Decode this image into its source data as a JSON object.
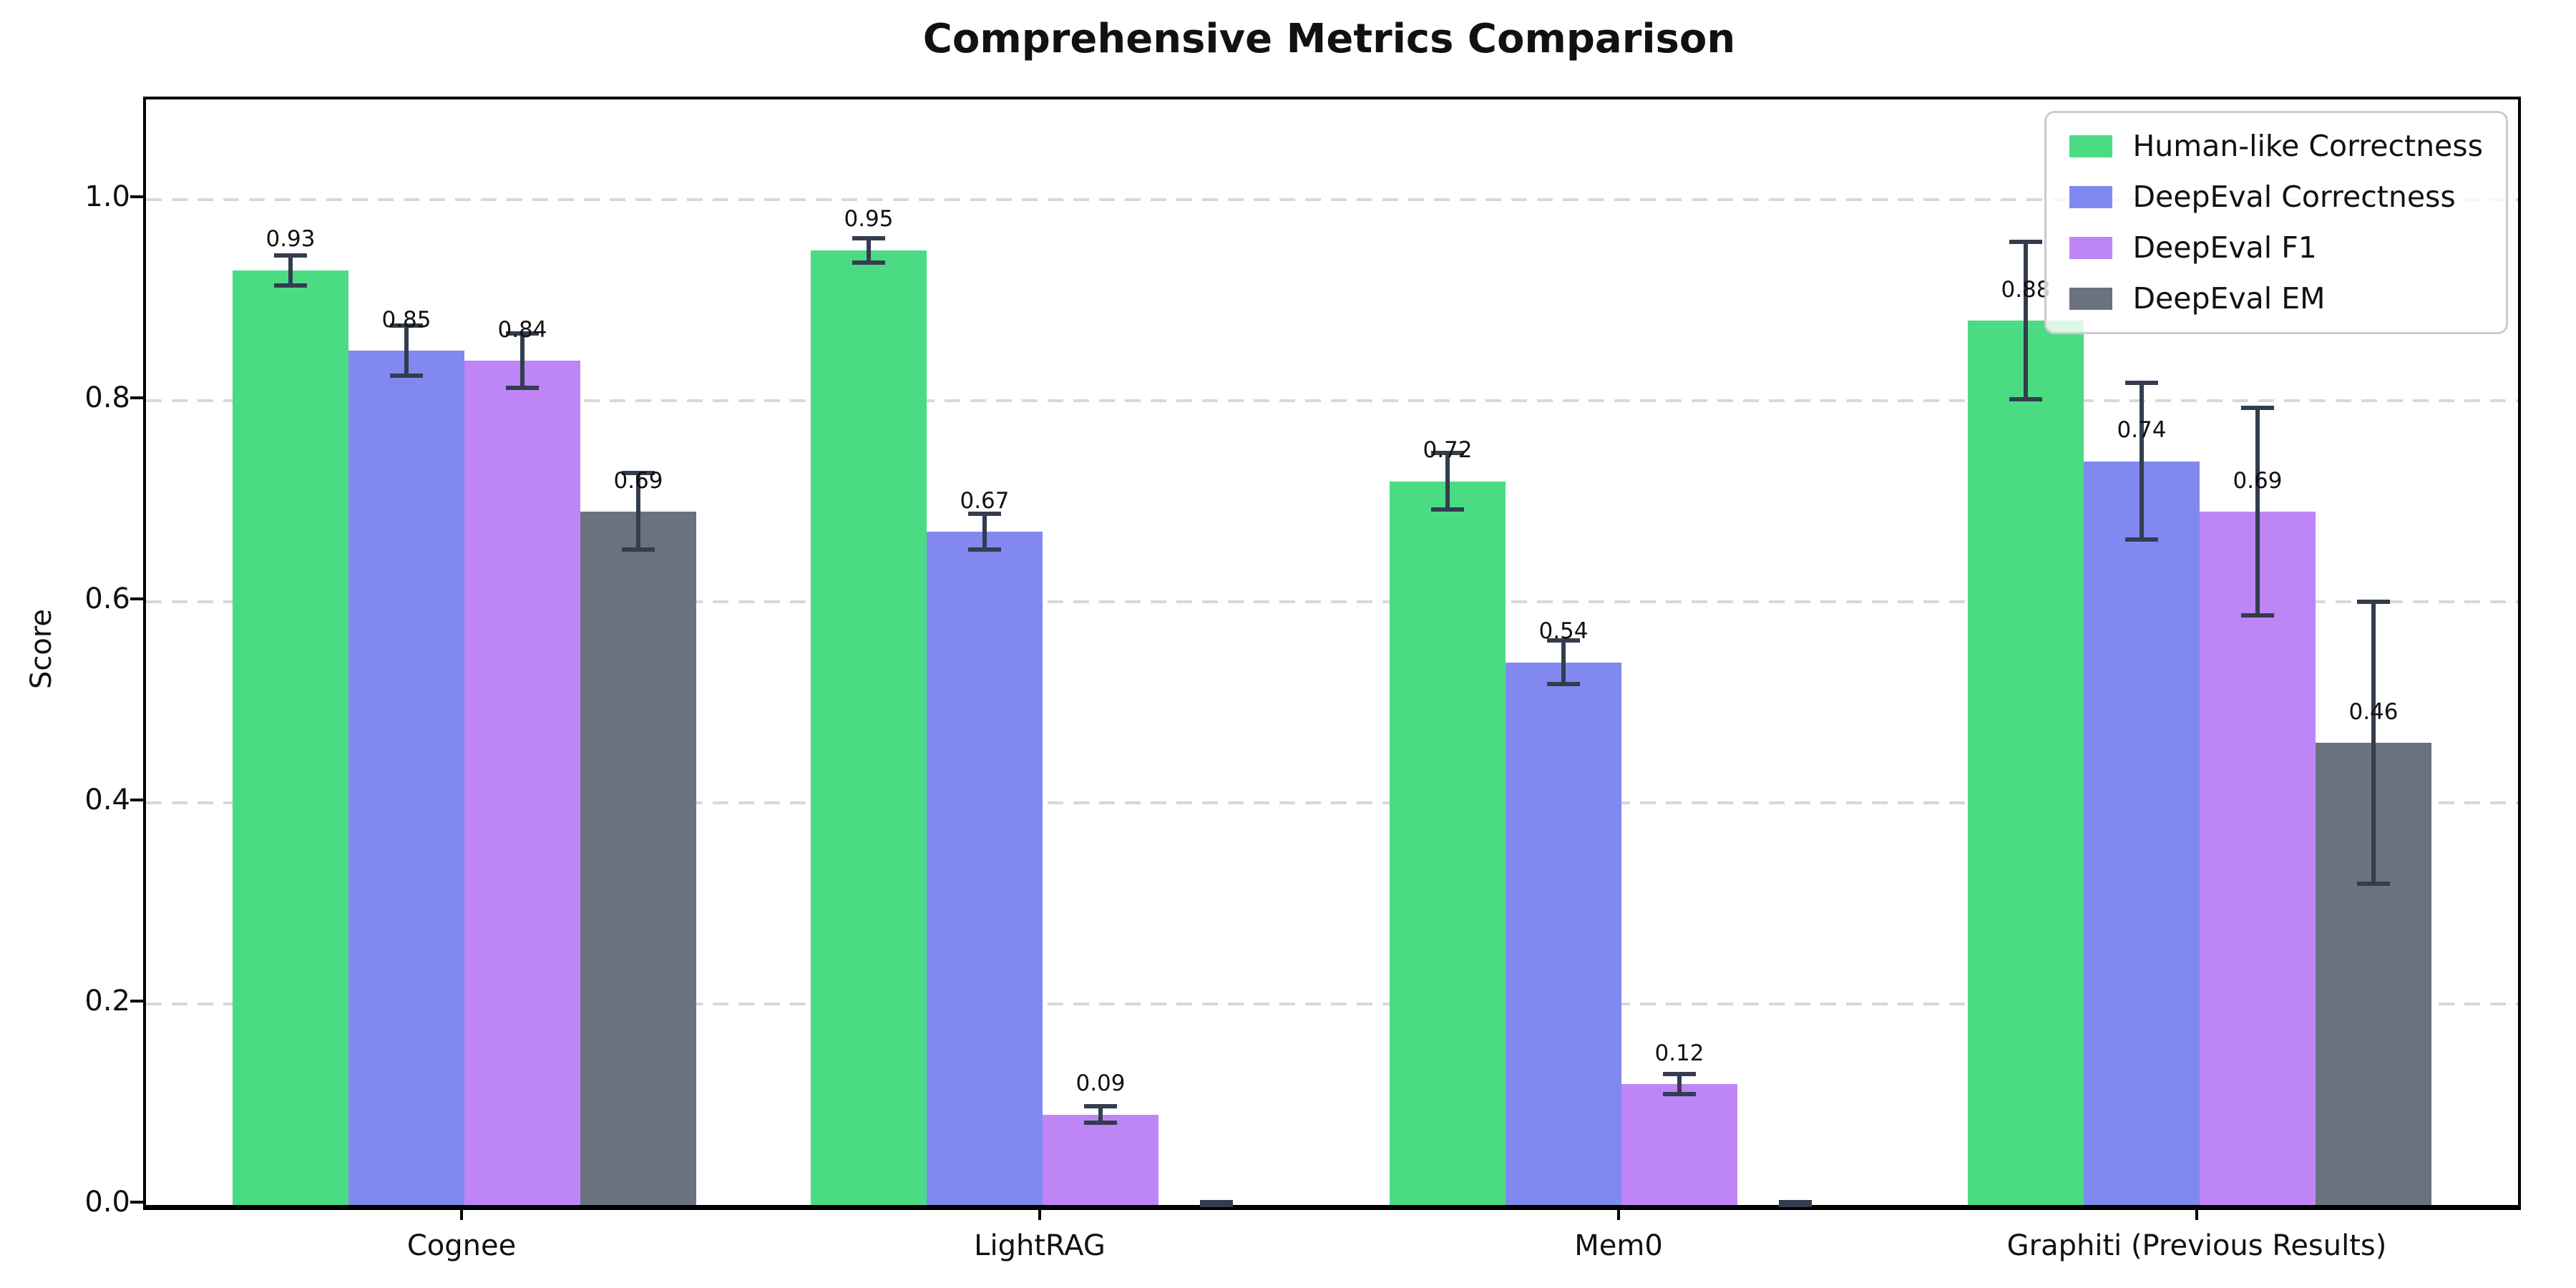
{
  "chart_data": {
    "type": "bar",
    "title": "Comprehensive Metrics Comparison",
    "ylabel": "Score",
    "categories": [
      "Cognee",
      "LightRAG",
      "Mem0",
      "Graphiti (Previous Results)"
    ],
    "series": [
      {
        "name": "Human-like Correctness",
        "color": "#4bdc83",
        "values": [
          0.93,
          0.95,
          0.72,
          0.88
        ],
        "errors": [
          0.015,
          0.012,
          0.028,
          0.078
        ],
        "labels": [
          "0.93",
          "0.95",
          "0.72",
          "0.88"
        ]
      },
      {
        "name": "DeepEval Correctness",
        "color": "#8189f0",
        "values": [
          0.85,
          0.67,
          0.54,
          0.74
        ],
        "errors": [
          0.025,
          0.018,
          0.022,
          0.078
        ],
        "labels": [
          "0.85",
          "0.67",
          "0.54",
          "0.74"
        ]
      },
      {
        "name": "DeepEval F1",
        "color": "#be85f6",
        "values": [
          0.84,
          0.09,
          0.12,
          0.69
        ],
        "errors": [
          0.027,
          0.008,
          0.01,
          0.103
        ],
        "labels": [
          "0.84",
          "0.09",
          "0.12",
          "0.69"
        ]
      },
      {
        "name": "DeepEval EM",
        "color": "#6a7280",
        "values": [
          0.69,
          0.0,
          0.0,
          0.46
        ],
        "errors": [
          0.038,
          0.003,
          0.003,
          0.14
        ],
        "labels": [
          "0.69",
          "",
          "",
          "0.46"
        ]
      }
    ],
    "y_ticks": [
      {
        "label": "0.0",
        "value": 0.0
      },
      {
        "label": "0.2",
        "value": 0.2
      },
      {
        "label": "0.4",
        "value": 0.4
      },
      {
        "label": "0.6",
        "value": 0.6
      },
      {
        "label": "0.8",
        "value": 0.8
      },
      {
        "label": "1.0",
        "value": 1.0
      }
    ],
    "ylim": [
      0,
      1.1
    ],
    "grid": "horizontal-dashed",
    "legend_position": "upper-right",
    "error_bar_color": "#333d4e",
    "grid_color": "#d8d8d8",
    "axis_color": "#000000"
  }
}
